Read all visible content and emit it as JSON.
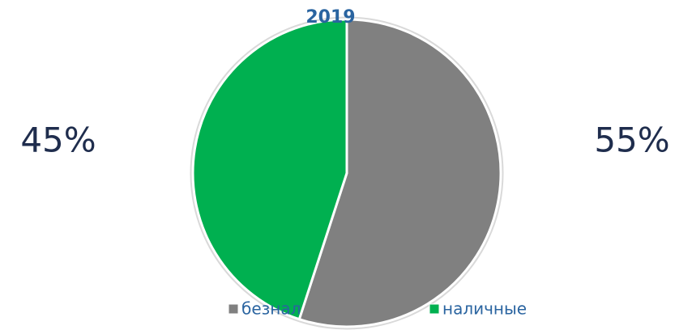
{
  "chart_data": {
    "type": "pie",
    "title": "2019",
    "categories": [
      "безнал",
      "наличные"
    ],
    "values": [
      55,
      45
    ],
    "value_labels": [
      "55%",
      "45%"
    ],
    "colors": [
      "#808080",
      "#00b050"
    ],
    "legend": "bottom"
  }
}
